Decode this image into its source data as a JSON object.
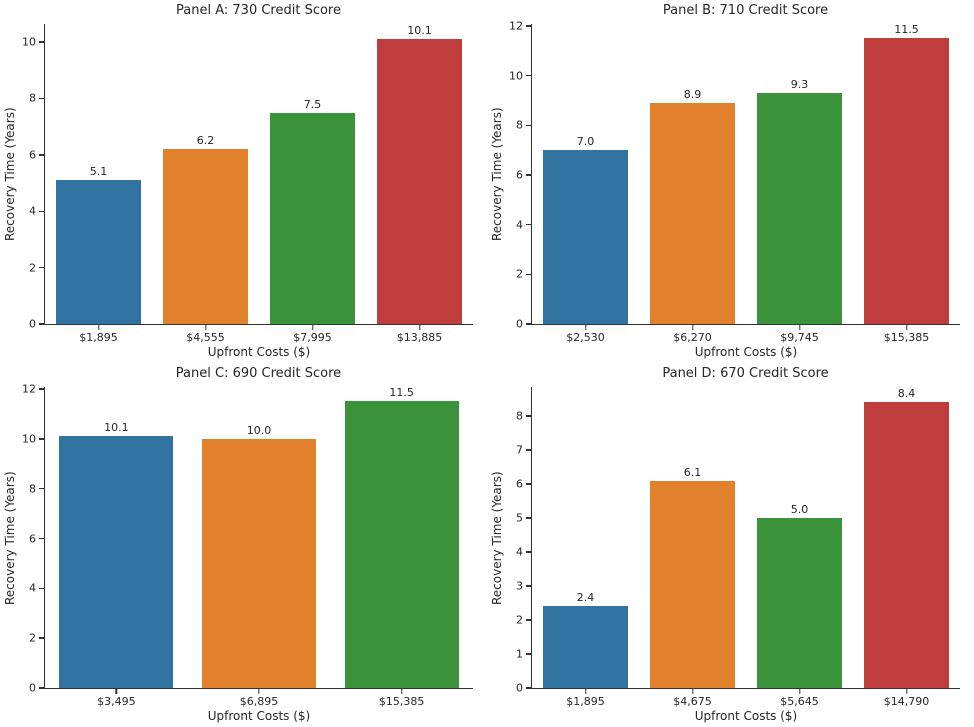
{
  "figure": {
    "background": "#ffffff",
    "axis_color": "#333333",
    "text_color": "#262626",
    "shared_xlabel": "Upfront Costs ($)",
    "shared_ylabel": "Recovery Time (Years)"
  },
  "palette": [
    "#3274a1",
    "#e1812c",
    "#3a923a",
    "#c03d3e"
  ],
  "chart_data": [
    {
      "type": "bar",
      "panel_id": "A",
      "title": "Panel A: 730 Credit Score",
      "xlabel": "Upfront Costs ($)",
      "ylabel": "Recovery Time (Years)",
      "categories": [
        "$1,895",
        "$4,555",
        "$7,995",
        "$13,885"
      ],
      "values": [
        5.1,
        6.2,
        7.5,
        10.1
      ],
      "value_labels": [
        "5.1",
        "6.2",
        "7.5",
        "10.1"
      ],
      "bar_colors": [
        "#3274a1",
        "#e1812c",
        "#3a923a",
        "#c03d3e"
      ],
      "yticks": [
        0,
        2,
        4,
        6,
        8,
        10
      ],
      "ylim": [
        0,
        10.64
      ],
      "grid": false,
      "legend": null
    },
    {
      "type": "bar",
      "panel_id": "B",
      "title": "Panel B: 710 Credit Score",
      "xlabel": "Upfront Costs ($)",
      "ylabel": "Recovery Time (Years)",
      "categories": [
        "$2,530",
        "$6,270",
        "$9,745",
        "$15,385"
      ],
      "values": [
        7.0,
        8.9,
        9.3,
        11.5
      ],
      "value_labels": [
        "7.0",
        "8.9",
        "9.3",
        "11.5"
      ],
      "bar_colors": [
        "#3274a1",
        "#e1812c",
        "#3a923a",
        "#c03d3e"
      ],
      "yticks": [
        0,
        2,
        4,
        6,
        8,
        10,
        12
      ],
      "ylim": [
        0,
        12.08
      ],
      "grid": false,
      "legend": null
    },
    {
      "type": "bar",
      "panel_id": "C",
      "title": "Panel C: 690 Credit Score",
      "xlabel": "Upfront Costs ($)",
      "ylabel": "Recovery Time (Years)",
      "categories": [
        "$3,495",
        "$6,895",
        "$15,385"
      ],
      "values": [
        10.1,
        10.0,
        11.5
      ],
      "value_labels": [
        "10.1",
        "10.0",
        "11.5"
      ],
      "bar_colors": [
        "#3274a1",
        "#e1812c",
        "#3a923a"
      ],
      "yticks": [
        0,
        2,
        4,
        6,
        8,
        10,
        12
      ],
      "ylim": [
        0,
        12.08
      ],
      "grid": false,
      "legend": null
    },
    {
      "type": "bar",
      "panel_id": "D",
      "title": "Panel D: 670 Credit Score",
      "xlabel": "Upfront Costs ($)",
      "ylabel": "Recovery Time (Years)",
      "categories": [
        "$1,895",
        "$4,675",
        "$5,645",
        "$14,790"
      ],
      "values": [
        2.4,
        6.1,
        5.0,
        8.4
      ],
      "value_labels": [
        "2.4",
        "6.1",
        "5.0",
        "8.4"
      ],
      "bar_colors": [
        "#3274a1",
        "#e1812c",
        "#3a923a",
        "#c03d3e"
      ],
      "yticks": [
        0,
        1,
        2,
        3,
        4,
        5,
        6,
        7,
        8
      ],
      "ylim": [
        0,
        8.85
      ],
      "grid": false,
      "legend": null
    }
  ]
}
